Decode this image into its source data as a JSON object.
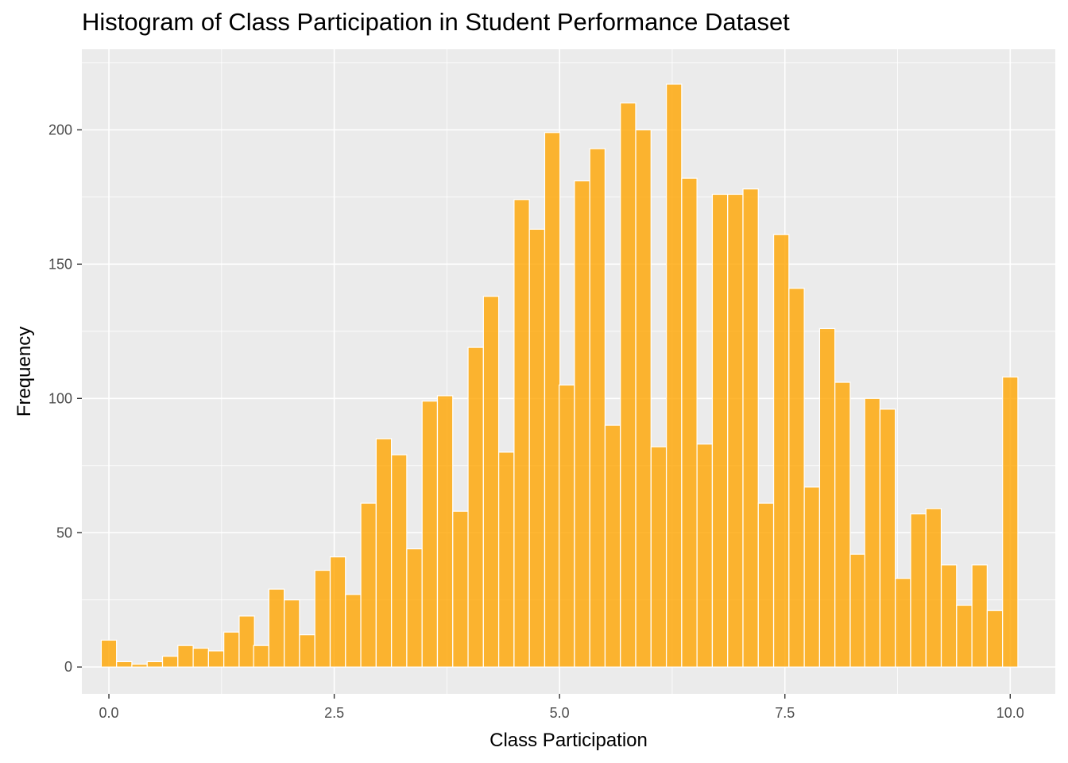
{
  "chart_data": {
    "type": "bar",
    "title": "Histogram of Class Participation in Student Performance Dataset",
    "xlabel": "Class Participation",
    "ylabel": "Frequency",
    "xlim": [
      -0.3,
      10.5
    ],
    "ylim": [
      -10,
      230
    ],
    "x_ticks": [
      0.0,
      2.5,
      5.0,
      7.5,
      10.0
    ],
    "x_tick_labels": [
      "0.0",
      "2.5",
      "5.0",
      "7.5",
      "10.0"
    ],
    "y_ticks": [
      0,
      50,
      100,
      150,
      200
    ],
    "y_tick_labels": [
      "0",
      "50",
      "100",
      "150",
      "200"
    ],
    "grid": true,
    "bar_color": "#FFA500",
    "panel_background": "#EBEBEB",
    "bin_width": 0.1695,
    "bin_centers": [
      0.0,
      0.17,
      0.34,
      0.51,
      0.68,
      0.85,
      1.02,
      1.19,
      1.36,
      1.53,
      1.69,
      1.86,
      2.03,
      2.2,
      2.37,
      2.54,
      2.71,
      2.88,
      3.05,
      3.22,
      3.39,
      3.56,
      3.73,
      3.9,
      4.07,
      4.24,
      4.41,
      4.58,
      4.75,
      4.92,
      5.08,
      5.25,
      5.42,
      5.59,
      5.76,
      5.93,
      6.1,
      6.27,
      6.44,
      6.61,
      6.78,
      6.95,
      7.12,
      7.29,
      7.46,
      7.63,
      7.8,
      7.97,
      8.14,
      8.31,
      8.47,
      8.64,
      8.81,
      8.98,
      9.15,
      9.32,
      9.49,
      9.66,
      9.83,
      10.0
    ],
    "values": [
      10,
      2,
      1,
      2,
      4,
      8,
      7,
      6,
      13,
      19,
      8,
      29,
      25,
      12,
      36,
      41,
      27,
      61,
      85,
      79,
      44,
      99,
      101,
      58,
      119,
      138,
      80,
      174,
      163,
      199,
      105,
      181,
      193,
      90,
      210,
      200,
      82,
      217,
      182,
      83,
      176,
      176,
      178,
      61,
      161,
      141,
      67,
      126,
      106,
      42,
      100,
      96,
      33,
      57,
      59,
      38,
      23,
      38,
      21,
      108
    ]
  }
}
